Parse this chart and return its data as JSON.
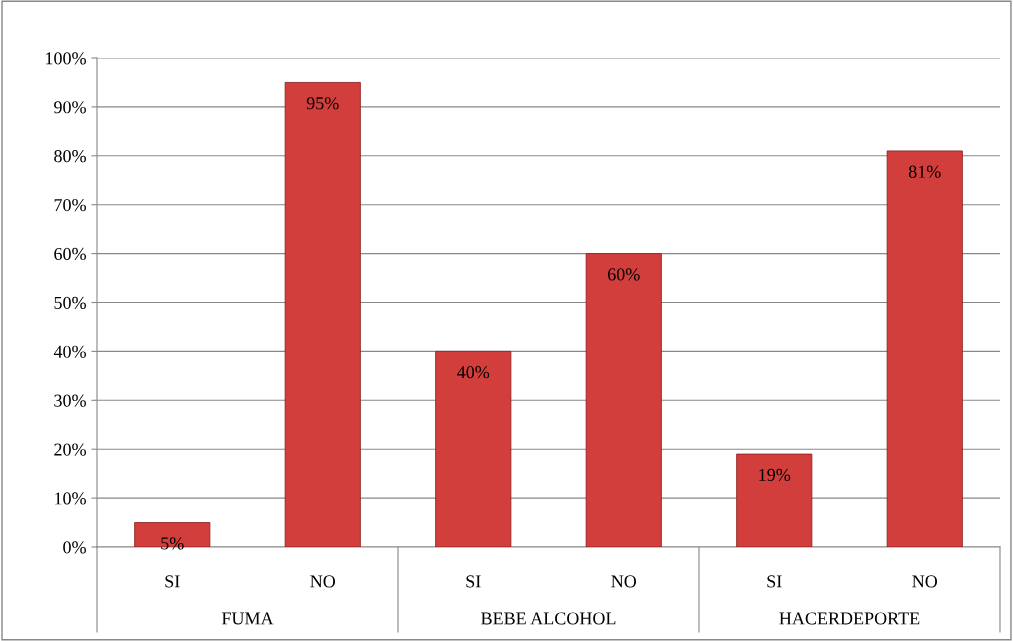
{
  "chart_data": {
    "type": "bar",
    "categories": [
      "SI",
      "NO",
      "SI",
      "NO",
      "SI",
      "NO"
    ],
    "values": [
      5,
      95,
      40,
      60,
      19,
      81
    ],
    "value_labels": [
      "5%",
      "95%",
      "40%",
      "60%",
      "19%",
      "81%"
    ],
    "color": "#d23e3b",
    "annotations": [
      "FUMA",
      "BEBE ALCOHOL",
      "HACERDEPORTE"
    ],
    "ylim": [
      0,
      100
    ],
    "yticks": [
      {
        "value": 0,
        "label": "0%"
      },
      {
        "value": 10,
        "label": "10%"
      },
      {
        "value": 20,
        "label": "20%"
      },
      {
        "value": 30,
        "label": "30%"
      },
      {
        "value": 40,
        "label": "40%"
      },
      {
        "value": 50,
        "label": "50%"
      },
      {
        "value": 60,
        "label": "60%"
      },
      {
        "value": 70,
        "label": "70%"
      },
      {
        "value": 80,
        "label": "80%"
      },
      {
        "value": 90,
        "label": "90%"
      },
      {
        "value": 100,
        "label": "100%"
      }
    ],
    "grid": "y",
    "legend": false
  }
}
